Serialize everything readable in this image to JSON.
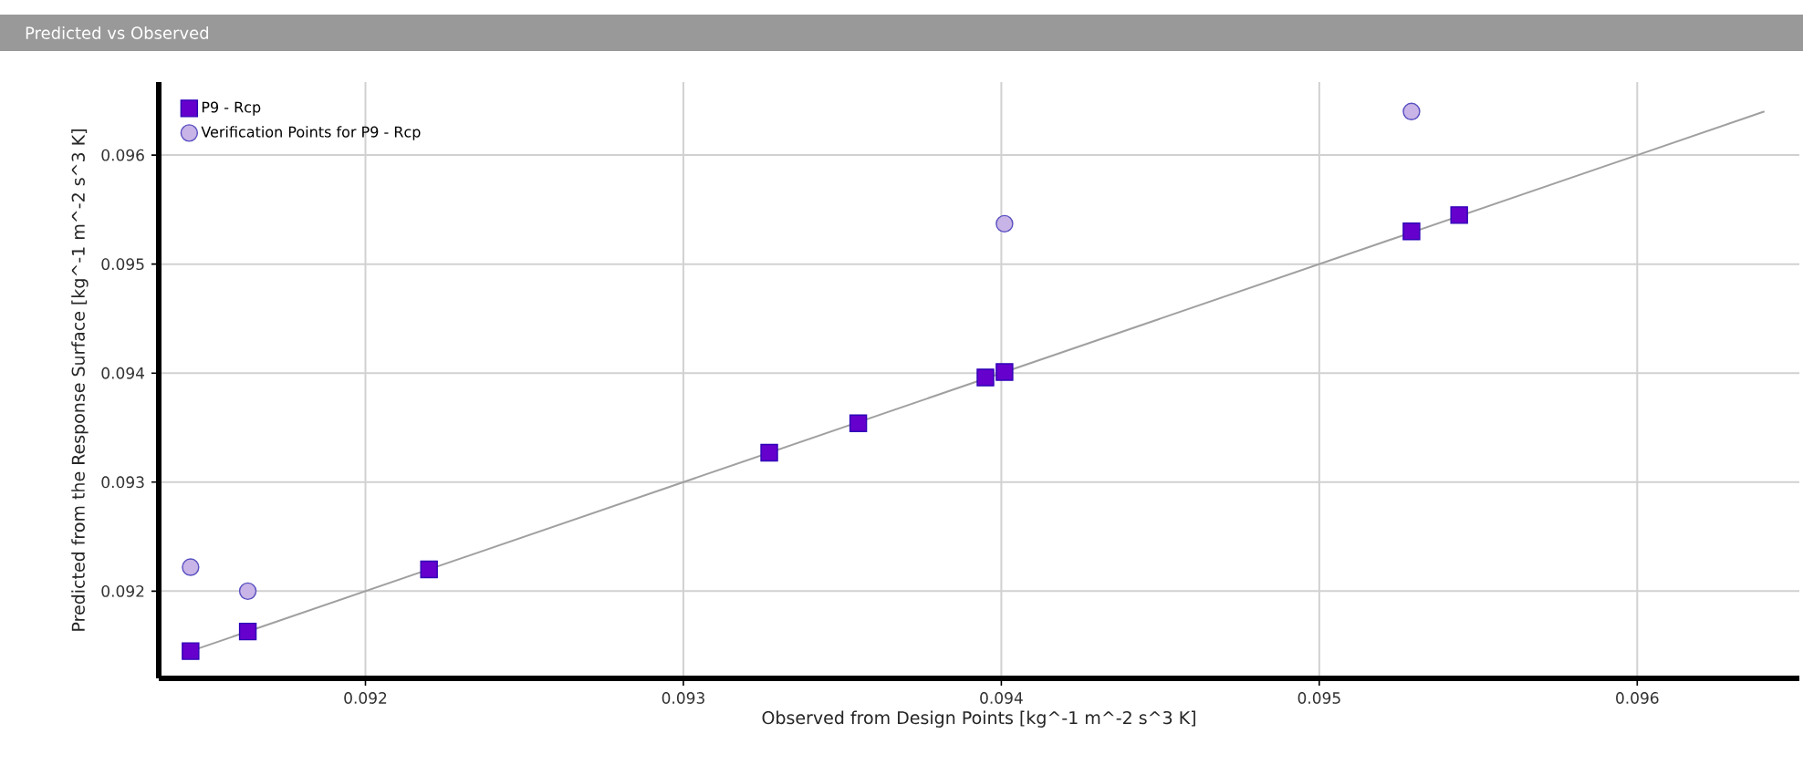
{
  "chart_data": {
    "type": "scatter",
    "title": "Predicted vs Observed",
    "xlabel": "Observed from Design Points  [kg^-1 m^-2 s^3 K]",
    "ylabel": "Predicted from the Response Surface  [kg^-1 m^-2 s^3 K]",
    "xlim": [
      0.09135,
      0.09651
    ],
    "ylim": [
      0.0912,
      0.09667
    ],
    "xticks": [
      0.092,
      0.093,
      0.094,
      0.095,
      0.096
    ],
    "yticks": [
      0.092,
      0.093,
      0.094,
      0.095,
      0.096
    ],
    "grid": true,
    "legend": "top left",
    "series": [
      {
        "name": "P9 - Rcp",
        "marker": "square",
        "color": "#6600cc",
        "x": [
          0.09145,
          0.09163,
          0.0922,
          0.09327,
          0.09355,
          0.09395,
          0.09401,
          0.09529,
          0.09544
        ],
        "values": [
          0.09145,
          0.09163,
          0.0922,
          0.09327,
          0.09354,
          0.09396,
          0.09401,
          0.0953,
          0.09545
        ]
      },
      {
        "name": "Verification Points for P9 - Rcp",
        "marker": "circle",
        "color": "#c8b4e6",
        "x": [
          0.09145,
          0.09163,
          0.09401,
          0.09529
        ],
        "values": [
          0.09222,
          0.092,
          0.09537,
          0.0964
        ]
      },
      {
        "type": "line",
        "color": "#a0a0a0",
        "x": [
          0.09145,
          0.0964
        ],
        "values": [
          0.09145,
          0.0964
        ]
      }
    ]
  }
}
